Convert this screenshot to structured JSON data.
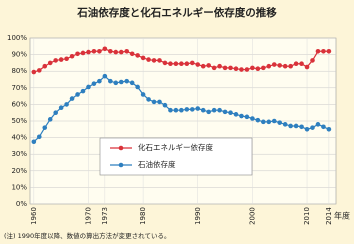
{
  "chart_data": {
    "type": "line",
    "title": "石油依存度と化石エネルギー依存度の推移",
    "x_label": "年度",
    "note": "(注) 1990年度以降、数値の算出方法が変更されている。",
    "x": [
      1960,
      1961,
      1962,
      1963,
      1964,
      1965,
      1966,
      1967,
      1968,
      1969,
      1970,
      1971,
      1972,
      1973,
      1974,
      1975,
      1976,
      1977,
      1978,
      1979,
      1980,
      1981,
      1982,
      1983,
      1984,
      1985,
      1986,
      1987,
      1988,
      1989,
      1990,
      1991,
      1992,
      1993,
      1994,
      1995,
      1996,
      1997,
      1998,
      1999,
      2000,
      2001,
      2002,
      2003,
      2004,
      2005,
      2006,
      2007,
      2008,
      2009,
      2010,
      2011,
      2012,
      2013,
      2014
    ],
    "series": [
      {
        "name": "化石エネルギー依存度",
        "color": "#d9323a",
        "values": [
          79.5,
          80.5,
          83,
          85,
          86.5,
          87,
          87.5,
          89,
          90.5,
          91,
          91.5,
          92,
          92,
          93.5,
          92,
          91.5,
          91.5,
          92,
          90.5,
          89.5,
          88,
          87,
          86.5,
          86.5,
          85,
          84.5,
          84.5,
          84.5,
          84.5,
          85,
          84,
          83,
          83.5,
          82,
          83,
          82,
          82,
          81.5,
          81,
          81,
          82,
          81.5,
          82,
          83,
          84,
          83.5,
          83,
          83,
          84.5,
          84.5,
          82.5,
          86.5,
          92,
          92,
          92
        ]
      },
      {
        "name": "石油依存度",
        "color": "#2e7fbf",
        "values": [
          37.5,
          40.5,
          46,
          51,
          55,
          58,
          60,
          63.5,
          66,
          68,
          70.5,
          72.5,
          74,
          77,
          74,
          73,
          73.5,
          74,
          73,
          70.5,
          66,
          63,
          61.5,
          61.5,
          59.5,
          56.5,
          56.5,
          56.5,
          57,
          57,
          57.5,
          56.5,
          55.5,
          56.5,
          56.5,
          55.5,
          55,
          54,
          53,
          52.5,
          51.5,
          50.5,
          49.5,
          49.5,
          50,
          49,
          48,
          47,
          47,
          46.5,
          45,
          46,
          48,
          46.5,
          45
        ]
      }
    ],
    "xlim": [
      1959.3,
      2015.3
    ],
    "xticks": [
      1960,
      1970,
      1973,
      1980,
      1990,
      2000,
      2010,
      2014
    ],
    "ylim": [
      0,
      100
    ],
    "yticks": [
      {
        "value": 0,
        "label": "0%"
      },
      {
        "value": 10,
        "label": "10%"
      },
      {
        "value": 20,
        "label": "20%"
      },
      {
        "value": 30,
        "label": "30%"
      },
      {
        "value": 40,
        "label": "40%"
      },
      {
        "value": 50,
        "label": "50%"
      },
      {
        "value": 60,
        "label": "60%"
      },
      {
        "value": 70,
        "label": "70%"
      },
      {
        "value": 80,
        "label": "80%"
      },
      {
        "value": 90,
        "label": "90%"
      },
      {
        "value": 100,
        "label": "100%"
      }
    ],
    "grid": true
  }
}
